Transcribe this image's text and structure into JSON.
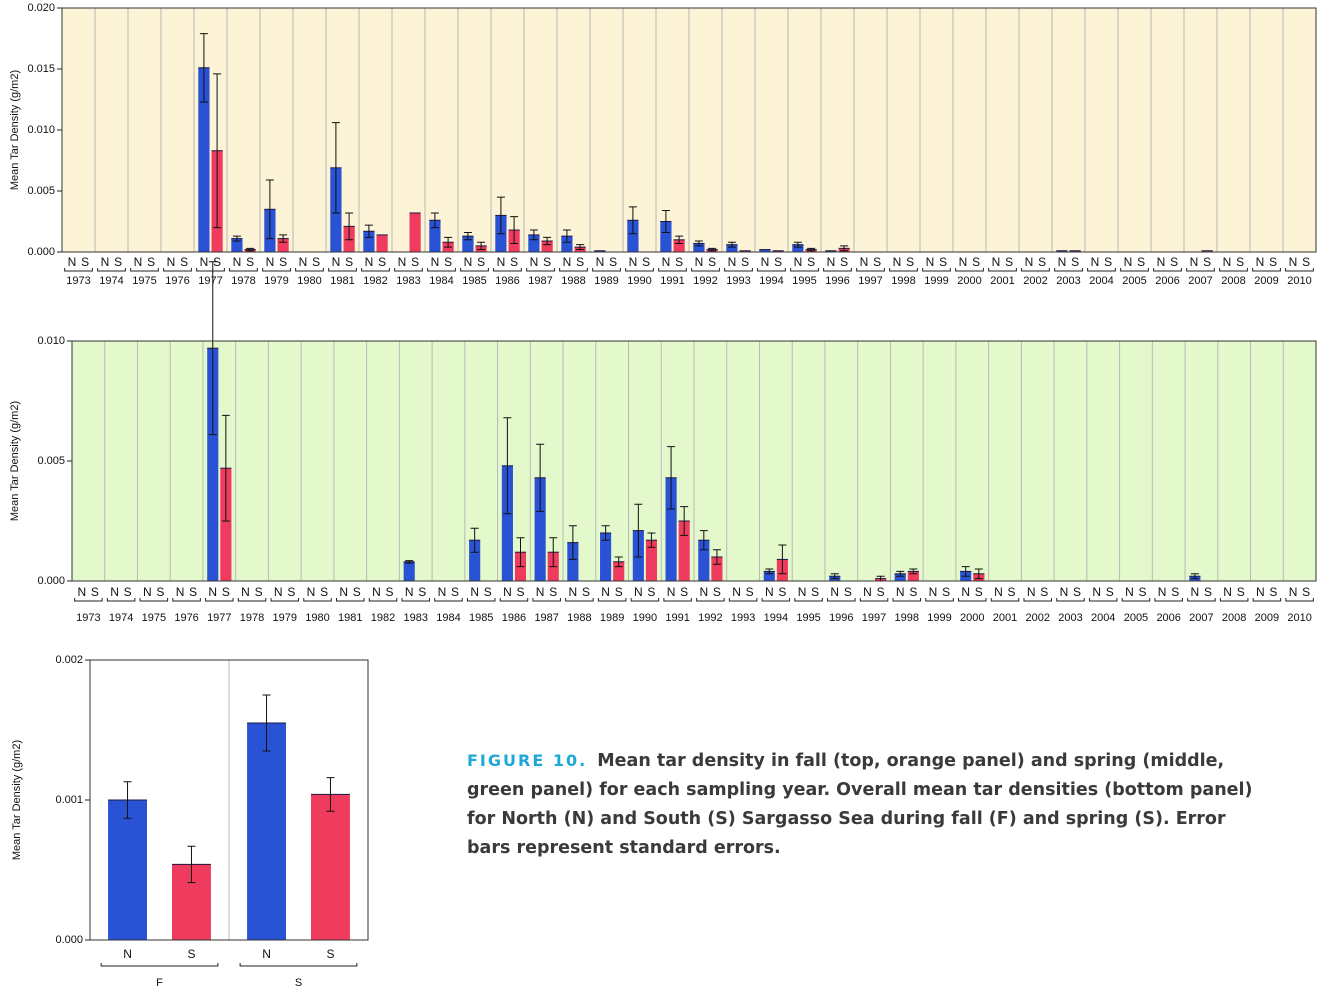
{
  "chart_data": [
    {
      "type": "bar",
      "ylabel": "Mean Tar Density (g/m2)",
      "background": "#fdf3d6",
      "grid": true,
      "categories": [
        "1973",
        "1974",
        "1975",
        "1976",
        "1977",
        "1978",
        "1979",
        "1980",
        "1981",
        "1982",
        "1983",
        "1984",
        "1985",
        "1986",
        "1987",
        "1988",
        "1989",
        "1990",
        "1991",
        "1992",
        "1993",
        "1994",
        "1995",
        "1996",
        "1997",
        "1998",
        "1999",
        "2000",
        "2001",
        "2002",
        "2003",
        "2004",
        "2005",
        "2006",
        "2007",
        "2008",
        "2009",
        "2010"
      ],
      "ylim": [
        0,
        0.02
      ],
      "yticks": [
        {
          "value": 0,
          "label": "0.000"
        },
        {
          "value": 0.005,
          "label": "0.005"
        },
        {
          "value": 0.01,
          "label": "0.010"
        },
        {
          "value": 0.015,
          "label": "0.015"
        },
        {
          "value": 0.02,
          "label": "0.020"
        }
      ],
      "series": [
        {
          "name": "N",
          "color": "#2a52d4",
          "values": [
            null,
            null,
            null,
            null,
            0.0151,
            0.0011,
            0.0035,
            null,
            0.0069,
            0.0017,
            null,
            0.0026,
            0.0013,
            0.003,
            0.0014,
            0.0013,
            0.0001,
            0.0026,
            0.0025,
            0.0007,
            0.0006,
            0.0002,
            0.0006,
            0.0001,
            0,
            0,
            0,
            0,
            0,
            0,
            0.0001,
            0,
            0,
            0,
            0,
            0,
            0,
            0
          ],
          "errors": [
            null,
            null,
            null,
            null,
            0.0028,
            0.0002,
            0.0024,
            null,
            0.0037,
            0.0005,
            null,
            0.0006,
            0.0003,
            0.0015,
            0.0004,
            0.0005,
            null,
            0.0011,
            0.0009,
            0.0002,
            0.0002,
            null,
            0.0002,
            null,
            null,
            null,
            null,
            null,
            null,
            null,
            null,
            null,
            null,
            null,
            null,
            null,
            null,
            null
          ]
        },
        {
          "name": "S",
          "color": "#ee3b5e",
          "values": [
            null,
            null,
            null,
            null,
            0.0083,
            0.0002,
            0.0011,
            null,
            0.0021,
            0.0014,
            0.0032,
            0.0008,
            0.0005,
            0.0018,
            0.0009,
            0.0004,
            0,
            null,
            0.001,
            0.0002,
            0.0001,
            0.0001,
            0.0002,
            0.0003,
            0,
            0,
            0,
            0,
            0,
            0,
            0.0001,
            0,
            0,
            0,
            0.0001,
            0,
            0,
            0
          ],
          "errors": [
            null,
            null,
            null,
            null,
            0.0063,
            0.0001,
            0.0003,
            null,
            0.0011,
            null,
            null,
            0.0004,
            0.0003,
            0.0011,
            0.0003,
            0.0002,
            null,
            null,
            0.0003,
            0.0001,
            null,
            null,
            0.0001,
            0.0002,
            null,
            null,
            null,
            null,
            null,
            null,
            null,
            null,
            null,
            null,
            null,
            null,
            null,
            null
          ]
        }
      ]
    },
    {
      "type": "bar",
      "ylabel": "Mean Tar Density (g/m2)",
      "background": "#e3f9cc",
      "grid": true,
      "categories": [
        "1973",
        "1974",
        "1975",
        "1976",
        "1977",
        "1978",
        "1979",
        "1980",
        "1981",
        "1982",
        "1983",
        "1984",
        "1985",
        "1986",
        "1987",
        "1988",
        "1989",
        "1990",
        "1991",
        "1992",
        "1993",
        "1994",
        "1995",
        "1996",
        "1997",
        "1998",
        "1999",
        "2000",
        "2001",
        "2002",
        "2003",
        "2004",
        "2005",
        "2006",
        "2007",
        "2008",
        "2009",
        "2010"
      ],
      "ylim": [
        0,
        0.01
      ],
      "yticks": [
        {
          "value": 0,
          "label": "0.000"
        },
        {
          "value": 0.005,
          "label": "0.005"
        },
        {
          "value": 0.01,
          "label": "0.010"
        }
      ],
      "series": [
        {
          "name": "N",
          "color": "#2a52d4",
          "values": [
            null,
            null,
            null,
            null,
            0.0097,
            null,
            null,
            null,
            null,
            null,
            0.0008,
            null,
            0.0017,
            0.0048,
            0.0043,
            0.0016,
            0.002,
            0.0021,
            0.0043,
            0.0017,
            0,
            0.0004,
            0,
            0.0002,
            null,
            0.0003,
            null,
            0.0004,
            0,
            0,
            null,
            0,
            0,
            0,
            0.0002,
            null,
            0,
            0
          ],
          "errors": [
            null,
            null,
            null,
            null,
            0.0036,
            null,
            null,
            null,
            null,
            null,
            5e-05,
            null,
            0.0005,
            0.002,
            0.0014,
            0.0007,
            0.0003,
            0.0011,
            0.0013,
            0.0004,
            null,
            0.0001,
            null,
            0.0001,
            null,
            0.0001,
            null,
            0.0002,
            null,
            null,
            null,
            null,
            null,
            null,
            0.0001,
            null,
            null,
            null
          ]
        },
        {
          "name": "S",
          "color": "#ee3b5e",
          "values": [
            null,
            null,
            null,
            null,
            0.0047,
            null,
            null,
            null,
            null,
            null,
            null,
            null,
            null,
            0.0012,
            0.0012,
            null,
            0.0008,
            0.0017,
            0.0025,
            0.001,
            0,
            0.0009,
            0,
            null,
            0.0001,
            0.0004,
            null,
            0.0003,
            0,
            null,
            0,
            null,
            0,
            null,
            0,
            null,
            0,
            null
          ],
          "errors": [
            null,
            null,
            null,
            null,
            0.0022,
            null,
            null,
            null,
            null,
            null,
            null,
            null,
            null,
            0.0006,
            0.0006,
            null,
            0.0002,
            0.0003,
            0.0006,
            0.0003,
            null,
            0.0006,
            null,
            null,
            0.0001,
            0.0001,
            null,
            0.0002,
            null,
            null,
            null,
            null,
            null,
            null,
            null,
            null,
            null,
            null
          ]
        }
      ]
    },
    {
      "type": "bar",
      "ylabel": "Mean Tar Density (g/m2)",
      "background": "#ffffff",
      "grid": true,
      "categories": [
        "F",
        "S"
      ],
      "ylim": [
        0,
        0.002
      ],
      "yticks": [
        {
          "value": 0,
          "label": "0.000"
        },
        {
          "value": 0.001,
          "label": "0.001"
        },
        {
          "value": 0.002,
          "label": "0.002"
        }
      ],
      "series": [
        {
          "name": "N",
          "color": "#2a52d4",
          "values": [
            0.001,
            0.00155
          ],
          "errors": [
            0.00013,
            0.0002
          ]
        },
        {
          "name": "S",
          "color": "#ee3b5e",
          "values": [
            0.00054,
            0.00104
          ],
          "errors": [
            0.00013,
            0.00012
          ]
        }
      ]
    }
  ],
  "caption": {
    "label": "FIGURE 10.",
    "text": "Mean tar density in fall (top, orange panel) and spring (middle, green panel) for each sampling year. Overall mean tar densities (bottom panel) for North (N) and South (S) Sargasso Sea during fall (F) and spring (S). Error bars represent standard errors."
  }
}
